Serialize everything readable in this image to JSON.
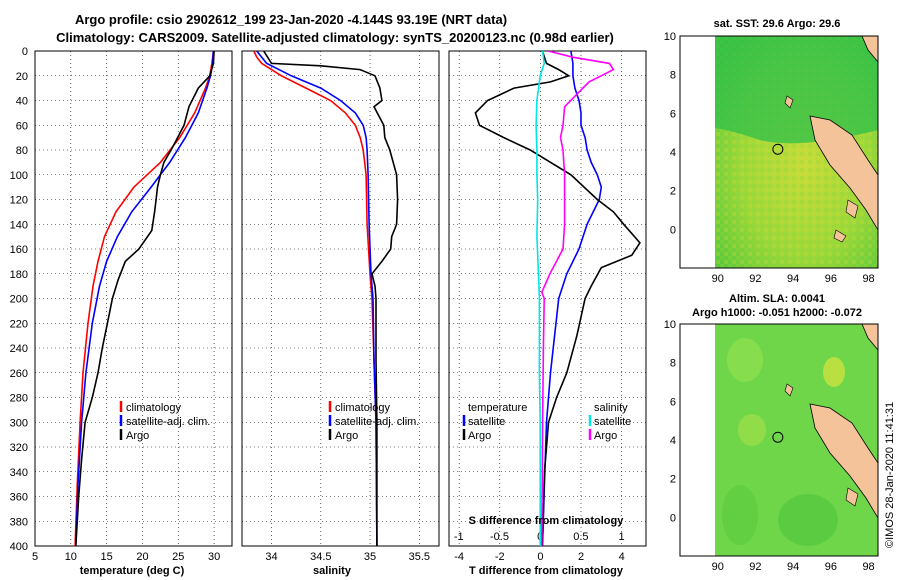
{
  "title": {
    "line1": "Argo profile: csio 2902612_199 23-Jan-2020 -4.144S 93.19E (NRT data)",
    "line2": "Climatology: CARS2009. Satellite-adjusted climatology: synTS_20200123.nc (0.98d earlier)"
  },
  "colors": {
    "climatology": "#ff0000",
    "satellite": "#0000ff",
    "argo": "#000000",
    "sal_satellite": "#00e5e5",
    "sal_argo": "#ff00ff",
    "ocean": "#3cc63c",
    "land": "#f5c39a"
  },
  "chart_data": [
    {
      "type": "line",
      "xlabel": "temperature (deg C)",
      "ylabel": "",
      "xlim": [
        5,
        32.5
      ],
      "ylim": [
        400,
        0
      ],
      "xticks": [
        "5",
        "10",
        "15",
        "20",
        "25",
        "30"
      ],
      "yticks": [
        "0",
        "20",
        "40",
        "60",
        "80",
        "100",
        "120",
        "140",
        "160",
        "180",
        "200",
        "220",
        "240",
        "260",
        "280",
        "300",
        "320",
        "340",
        "360",
        "380",
        "400"
      ],
      "legend": [
        "climatology",
        "satellite-adj. clim.",
        "Argo"
      ],
      "series": [
        {
          "name": "climatology",
          "depth": [
            0,
            10,
            20,
            30,
            50,
            70,
            90,
            110,
            130,
            150,
            170,
            190,
            220,
            260,
            300,
            350,
            400
          ],
          "values": [
            29.9,
            29.7,
            29.4,
            28.8,
            27.3,
            25.2,
            22.5,
            18.8,
            16.3,
            14.7,
            13.8,
            13.1,
            12.4,
            11.7,
            11.3,
            10.9,
            10.6
          ]
        },
        {
          "name": "satellite-adj. clim.",
          "depth": [
            0,
            10,
            20,
            30,
            50,
            70,
            90,
            110,
            130,
            150,
            170,
            190,
            220,
            260,
            300,
            350,
            400
          ],
          "values": [
            29.9,
            29.8,
            29.5,
            29.0,
            27.8,
            26.0,
            23.8,
            21.2,
            18.5,
            16.5,
            15.0,
            14.0,
            13.0,
            12.1,
            11.5,
            11.0,
            10.7
          ]
        },
        {
          "name": "Argo",
          "depth": [
            0,
            10,
            20,
            25,
            30,
            45,
            60,
            70,
            80,
            90,
            100,
            110,
            120,
            130,
            145,
            160,
            170,
            185,
            200,
            220,
            240,
            260,
            280,
            300,
            330,
            360,
            400
          ],
          "values": [
            30.0,
            29.9,
            29.4,
            28.6,
            27.8,
            26.5,
            25.8,
            24.9,
            24.0,
            23.0,
            22.5,
            22.1,
            21.9,
            21.7,
            21.3,
            19.5,
            17.6,
            16.6,
            15.8,
            15.1,
            14.4,
            13.8,
            13.0,
            12.0,
            11.5,
            11.1,
            10.7
          ]
        }
      ]
    },
    {
      "type": "line",
      "xlabel": "salinity",
      "xlim": [
        33.7,
        35.7
      ],
      "ylim": [
        400,
        0
      ],
      "xticks": [
        "34",
        "34.5",
        "35",
        "35.5"
      ],
      "legend": [
        "climatology",
        "satellite-adj. clim.",
        "Argo"
      ],
      "series": [
        {
          "name": "climatology",
          "depth": [
            0,
            5,
            10,
            20,
            30,
            40,
            50,
            60,
            70,
            80,
            100,
            140,
            180,
            200,
            250,
            300,
            400
          ],
          "values": [
            33.82,
            33.85,
            33.9,
            34.1,
            34.35,
            34.6,
            34.75,
            34.85,
            34.9,
            34.93,
            34.96,
            34.97,
            35.0,
            35.02,
            35.04,
            35.06,
            35.07
          ]
        },
        {
          "name": "satellite-adj. clim.",
          "depth": [
            0,
            10,
            20,
            30,
            40,
            50,
            60,
            70,
            80,
            100,
            140,
            180,
            200,
            250,
            300,
            400
          ],
          "values": [
            33.85,
            33.95,
            34.2,
            34.5,
            34.7,
            34.85,
            34.93,
            34.96,
            34.97,
            34.98,
            34.99,
            35.01,
            35.03,
            35.04,
            35.06,
            35.07
          ]
        },
        {
          "name": "Argo",
          "depth": [
            0,
            10,
            12,
            15,
            20,
            30,
            40,
            45,
            60,
            70,
            80,
            100,
            120,
            140,
            150,
            160,
            170,
            180,
            190,
            200,
            250,
            300,
            400
          ],
          "values": [
            33.92,
            34.0,
            34.5,
            34.9,
            35.05,
            35.1,
            35.12,
            35.04,
            35.14,
            35.15,
            35.2,
            35.27,
            35.28,
            35.27,
            35.22,
            35.21,
            35.12,
            35.02,
            35.05,
            35.06,
            35.06,
            35.07,
            35.07
          ]
        }
      ]
    },
    {
      "type": "line",
      "xlabel": "T difference from climatology",
      "xlabel_top": "S difference from climatology",
      "xlim": [
        -4.5,
        5.2
      ],
      "s_xlim": [
        -1.12,
        1.3
      ],
      "ylim": [
        400,
        0
      ],
      "xticks": [
        "-4",
        "-2",
        "0",
        "2",
        "4"
      ],
      "s_xticks": [
        "-1",
        "-0.5",
        "0",
        "0.5",
        "1"
      ],
      "legend_left": [
        "temperature",
        "satellite",
        "Argo"
      ],
      "legend_right": [
        "salinity",
        "satellite",
        "Argo"
      ],
      "series": [
        {
          "name": "T satellite",
          "depth": [
            0,
            10,
            20,
            30,
            40,
            50,
            60,
            70,
            80,
            90,
            100,
            110,
            120,
            130,
            140,
            160,
            180,
            200,
            260,
            300,
            400
          ],
          "values": [
            1.5,
            1.6,
            1.6,
            1.7,
            1.9,
            2.0,
            2.0,
            2.2,
            2.3,
            2.5,
            2.8,
            3.0,
            2.9,
            2.6,
            2.3,
            1.9,
            1.3,
            0.9,
            0.5,
            0.3,
            0.1
          ]
        },
        {
          "name": "T Argo",
          "depth": [
            0,
            10,
            15,
            20,
            25,
            30,
            40,
            50,
            60,
            70,
            80,
            100,
            120,
            130,
            140,
            155,
            165,
            175,
            190,
            200,
            230,
            260,
            280,
            300,
            320,
            340,
            400
          ],
          "values": [
            0.1,
            0.3,
            0.9,
            1.4,
            0.5,
            -1.3,
            -2.6,
            -3.2,
            -3.0,
            -1.8,
            -0.5,
            1.5,
            2.8,
            3.6,
            4.1,
            4.9,
            4.5,
            3.0,
            2.5,
            2.2,
            1.8,
            1.3,
            0.8,
            0.4,
            0.3,
            0.2,
            0.1
          ]
        },
        {
          "name": "S satellite",
          "depth": [
            0,
            10,
            20,
            40,
            60,
            80,
            100,
            120,
            150,
            180,
            200,
            260,
            300,
            400
          ],
          "values": [
            0.03,
            0.05,
            0.0,
            -0.04,
            -0.05,
            -0.04,
            -0.04,
            -0.03,
            -0.04,
            -0.02,
            -0.01,
            -0.01,
            0.0,
            0.0
          ]
        },
        {
          "name": "S Argo",
          "depth": [
            0,
            5,
            10,
            15,
            20,
            25,
            35,
            45,
            60,
            70,
            80,
            100,
            140,
            160,
            180,
            195,
            200,
            240,
            300,
            400
          ],
          "values": [
            0.1,
            0.4,
            0.85,
            0.9,
            0.75,
            0.6,
            0.45,
            0.3,
            0.28,
            0.25,
            0.28,
            0.3,
            0.3,
            0.28,
            0.12,
            0.02,
            0.05,
            0.04,
            0.03,
            0.02
          ]
        }
      ]
    },
    {
      "type": "heatmap",
      "title": "sat. SST: 29.6 Argo: 29.6",
      "xlim": [
        88,
        98.5
      ],
      "ylim": [
        -2,
        10
      ],
      "xticks": [
        "90",
        "92",
        "94",
        "96",
        "98"
      ],
      "yticks": [
        "10",
        "8",
        "6",
        "4",
        "2",
        "0"
      ],
      "float_position": {
        "lon": 93.19,
        "lat": 4.144
      }
    },
    {
      "type": "heatmap",
      "title_line1": "Altim. SLA: 0.0041",
      "title_line2": "Argo h1000: -0.051 h2000: -0.072",
      "xlim": [
        88,
        98.5
      ],
      "ylim": [
        -2,
        10
      ],
      "xticks": [
        "90",
        "92",
        "94",
        "96",
        "98"
      ],
      "yticks": [
        "10",
        "8",
        "6",
        "4",
        "2",
        "0"
      ],
      "float_position": {
        "lon": 93.19,
        "lat": 4.144
      }
    }
  ],
  "credit": "©IMOS 28-Jan-2020 11:41:31"
}
